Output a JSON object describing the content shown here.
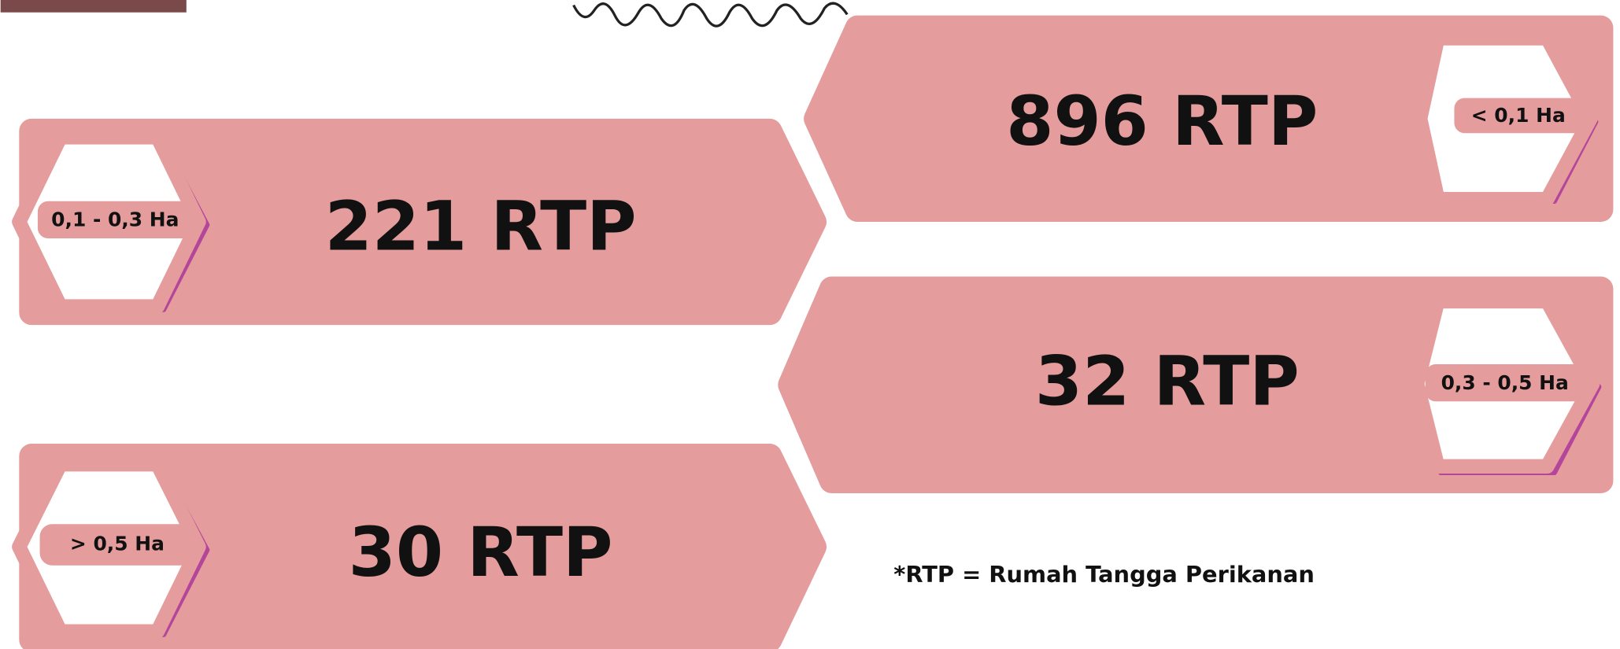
{
  "items": [
    {
      "label": "< 0,1 Ha",
      "value": "896 RTP"
    },
    {
      "label": "0,1 - 0,3 Ha",
      "value": "221 RTP"
    },
    {
      "label": "0,3 - 0,5 Ha",
      "value": "32 RTP"
    },
    {
      "label": "> 0,5 Ha",
      "value": "30 RTP"
    }
  ],
  "note": "*RTP = Rumah Tangga Perikanan"
}
